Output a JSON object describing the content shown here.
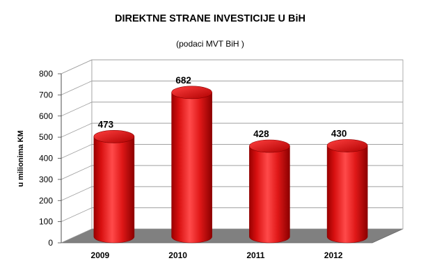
{
  "chart_data": {
    "type": "bar",
    "title": "DIREKTNE STRANE INVESTICIJE U BiH",
    "subtitle": "(podaci MVT BiH )",
    "ylabel": "u milionima KM",
    "xlabel": "",
    "categories": [
      "2009",
      "2010",
      "2011",
      "2012"
    ],
    "values": [
      473,
      682,
      428,
      430
    ],
    "data_labels": [
      "473",
      "682",
      "428",
      "430"
    ],
    "ylim": [
      0,
      800
    ],
    "yticks": [
      "0",
      "100",
      "200",
      "300",
      "400",
      "500",
      "600",
      "700",
      "800"
    ],
    "grid": true,
    "legend": "none",
    "style": "3d-cylinder",
    "colors": {
      "bar": "#e01818",
      "bar_dark": "#8c0000",
      "bar_light": "#ff5a5a",
      "floor": "#808080",
      "wall": "#ffffff",
      "grid": "#a0a0a0"
    }
  }
}
